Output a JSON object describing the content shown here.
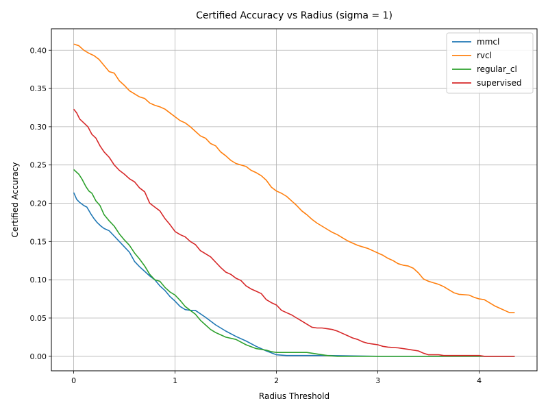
{
  "chart_data": {
    "type": "line",
    "title": "Certified Accuracy vs Radius (sigma = 1)",
    "xlabel": "Radius Threshold",
    "ylabel": "Certified Accuracy",
    "xlim": [
      -0.22,
      4.57
    ],
    "ylim": [
      -0.019,
      0.428
    ],
    "x_ticks": [
      0,
      1,
      2,
      3,
      4
    ],
    "x_tick_labels": [
      "0",
      "1",
      "2",
      "3",
      "4"
    ],
    "y_ticks": [
      0.0,
      0.05,
      0.1,
      0.15,
      0.2,
      0.25,
      0.3,
      0.35,
      0.4
    ],
    "y_tick_labels": [
      "0.00",
      "0.05",
      "0.10",
      "0.15",
      "0.20",
      "0.25",
      "0.30",
      "0.35",
      "0.40"
    ],
    "grid": true,
    "legend_position": "top-right",
    "series": [
      {
        "name": "mmcl",
        "color": "#1f77b4",
        "points": [
          [
            0,
            0.214
          ],
          [
            0.03,
            0.205
          ],
          [
            0.06,
            0.201
          ],
          [
            0.1,
            0.197
          ],
          [
            0.13,
            0.195
          ],
          [
            0.17,
            0.186
          ],
          [
            0.2,
            0.18
          ],
          [
            0.23,
            0.175
          ],
          [
            0.27,
            0.17
          ],
          [
            0.3,
            0.167
          ],
          [
            0.35,
            0.164
          ],
          [
            0.4,
            0.157
          ],
          [
            0.45,
            0.15
          ],
          [
            0.5,
            0.143
          ],
          [
            0.55,
            0.136
          ],
          [
            0.6,
            0.124
          ],
          [
            0.65,
            0.117
          ],
          [
            0.7,
            0.111
          ],
          [
            0.75,
            0.105
          ],
          [
            0.8,
            0.1
          ],
          [
            0.85,
            0.092
          ],
          [
            0.9,
            0.086
          ],
          [
            0.95,
            0.078
          ],
          [
            1.0,
            0.072
          ],
          [
            1.05,
            0.065
          ],
          [
            1.1,
            0.061
          ],
          [
            1.15,
            0.06
          ],
          [
            1.2,
            0.06
          ],
          [
            1.3,
            0.051
          ],
          [
            1.4,
            0.041
          ],
          [
            1.5,
            0.033
          ],
          [
            1.6,
            0.026
          ],
          [
            1.7,
            0.02
          ],
          [
            1.8,
            0.013
          ],
          [
            1.9,
            0.007
          ],
          [
            2.0,
            0.002
          ],
          [
            2.1,
            0.001
          ],
          [
            2.5,
            0.001
          ],
          [
            3.0,
            0.0
          ],
          [
            3.5,
            0.0
          ],
          [
            4.0,
            0.0
          ],
          [
            4.35,
            0.0
          ]
        ]
      },
      {
        "name": "rvcl",
        "color": "#ff7f0e",
        "points": [
          [
            0,
            0.408
          ],
          [
            0.05,
            0.406
          ],
          [
            0.1,
            0.4
          ],
          [
            0.15,
            0.396
          ],
          [
            0.2,
            0.393
          ],
          [
            0.25,
            0.388
          ],
          [
            0.3,
            0.38
          ],
          [
            0.35,
            0.372
          ],
          [
            0.4,
            0.37
          ],
          [
            0.45,
            0.36
          ],
          [
            0.5,
            0.354
          ],
          [
            0.55,
            0.347
          ],
          [
            0.6,
            0.343
          ],
          [
            0.65,
            0.339
          ],
          [
            0.7,
            0.337
          ],
          [
            0.75,
            0.331
          ],
          [
            0.8,
            0.328
          ],
          [
            0.85,
            0.326
          ],
          [
            0.9,
            0.323
          ],
          [
            0.95,
            0.318
          ],
          [
            1.0,
            0.313
          ],
          [
            1.05,
            0.308
          ],
          [
            1.1,
            0.305
          ],
          [
            1.15,
            0.3
          ],
          [
            1.2,
            0.294
          ],
          [
            1.25,
            0.288
          ],
          [
            1.3,
            0.285
          ],
          [
            1.35,
            0.278
          ],
          [
            1.4,
            0.275
          ],
          [
            1.45,
            0.267
          ],
          [
            1.5,
            0.262
          ],
          [
            1.55,
            0.256
          ],
          [
            1.6,
            0.252
          ],
          [
            1.65,
            0.25
          ],
          [
            1.7,
            0.248
          ],
          [
            1.75,
            0.243
          ],
          [
            1.8,
            0.24
          ],
          [
            1.85,
            0.236
          ],
          [
            1.9,
            0.23
          ],
          [
            1.95,
            0.221
          ],
          [
            2.0,
            0.216
          ],
          [
            2.05,
            0.213
          ],
          [
            2.1,
            0.209
          ],
          [
            2.15,
            0.203
          ],
          [
            2.2,
            0.197
          ],
          [
            2.25,
            0.19
          ],
          [
            2.3,
            0.185
          ],
          [
            2.35,
            0.179
          ],
          [
            2.4,
            0.174
          ],
          [
            2.45,
            0.17
          ],
          [
            2.5,
            0.166
          ],
          [
            2.55,
            0.162
          ],
          [
            2.6,
            0.159
          ],
          [
            2.65,
            0.155
          ],
          [
            2.7,
            0.151
          ],
          [
            2.75,
            0.148
          ],
          [
            2.8,
            0.145
          ],
          [
            2.85,
            0.143
          ],
          [
            2.9,
            0.141
          ],
          [
            2.95,
            0.138
          ],
          [
            3.0,
            0.135
          ],
          [
            3.05,
            0.132
          ],
          [
            3.1,
            0.128
          ],
          [
            3.15,
            0.125
          ],
          [
            3.2,
            0.121
          ],
          [
            3.25,
            0.119
          ],
          [
            3.3,
            0.118
          ],
          [
            3.35,
            0.115
          ],
          [
            3.4,
            0.109
          ],
          [
            3.45,
            0.101
          ],
          [
            3.5,
            0.098
          ],
          [
            3.55,
            0.096
          ],
          [
            3.6,
            0.094
          ],
          [
            3.65,
            0.091
          ],
          [
            3.7,
            0.087
          ],
          [
            3.75,
            0.083
          ],
          [
            3.8,
            0.081
          ],
          [
            3.9,
            0.08
          ],
          [
            3.95,
            0.077
          ],
          [
            4.0,
            0.075
          ],
          [
            4.05,
            0.074
          ],
          [
            4.1,
            0.07
          ],
          [
            4.15,
            0.066
          ],
          [
            4.2,
            0.063
          ],
          [
            4.25,
            0.06
          ],
          [
            4.3,
            0.057
          ],
          [
            4.35,
            0.057
          ]
        ]
      },
      {
        "name": "regular_cl",
        "color": "#2ca02c",
        "points": [
          [
            0,
            0.244
          ],
          [
            0.05,
            0.238
          ],
          [
            0.08,
            0.232
          ],
          [
            0.12,
            0.222
          ],
          [
            0.15,
            0.216
          ],
          [
            0.18,
            0.213
          ],
          [
            0.22,
            0.203
          ],
          [
            0.26,
            0.197
          ],
          [
            0.3,
            0.185
          ],
          [
            0.35,
            0.177
          ],
          [
            0.4,
            0.17
          ],
          [
            0.45,
            0.16
          ],
          [
            0.5,
            0.152
          ],
          [
            0.55,
            0.145
          ],
          [
            0.6,
            0.135
          ],
          [
            0.65,
            0.127
          ],
          [
            0.7,
            0.118
          ],
          [
            0.75,
            0.107
          ],
          [
            0.8,
            0.1
          ],
          [
            0.85,
            0.098
          ],
          [
            0.9,
            0.09
          ],
          [
            0.95,
            0.084
          ],
          [
            1.0,
            0.08
          ],
          [
            1.05,
            0.073
          ],
          [
            1.1,
            0.065
          ],
          [
            1.15,
            0.06
          ],
          [
            1.2,
            0.055
          ],
          [
            1.25,
            0.047
          ],
          [
            1.3,
            0.041
          ],
          [
            1.35,
            0.035
          ],
          [
            1.4,
            0.031
          ],
          [
            1.45,
            0.028
          ],
          [
            1.5,
            0.025
          ],
          [
            1.6,
            0.022
          ],
          [
            1.7,
            0.015
          ],
          [
            1.8,
            0.01
          ],
          [
            1.9,
            0.008
          ],
          [
            1.95,
            0.006
          ],
          [
            2.0,
            0.005
          ],
          [
            2.3,
            0.005
          ],
          [
            2.4,
            0.003
          ],
          [
            2.5,
            0.001
          ],
          [
            2.6,
            0.0
          ],
          [
            3.0,
            0.0
          ],
          [
            3.5,
            0.0
          ],
          [
            4.0,
            0.0
          ],
          [
            4.35,
            0.0
          ]
        ]
      },
      {
        "name": "supervised",
        "color": "#d62728",
        "points": [
          [
            0,
            0.323
          ],
          [
            0.03,
            0.318
          ],
          [
            0.06,
            0.31
          ],
          [
            0.1,
            0.305
          ],
          [
            0.14,
            0.3
          ],
          [
            0.18,
            0.29
          ],
          [
            0.22,
            0.285
          ],
          [
            0.26,
            0.275
          ],
          [
            0.3,
            0.267
          ],
          [
            0.35,
            0.26
          ],
          [
            0.4,
            0.25
          ],
          [
            0.45,
            0.243
          ],
          [
            0.5,
            0.238
          ],
          [
            0.55,
            0.232
          ],
          [
            0.6,
            0.228
          ],
          [
            0.65,
            0.22
          ],
          [
            0.7,
            0.215
          ],
          [
            0.75,
            0.2
          ],
          [
            0.8,
            0.195
          ],
          [
            0.85,
            0.19
          ],
          [
            0.9,
            0.18
          ],
          [
            0.95,
            0.172
          ],
          [
            1.0,
            0.163
          ],
          [
            1.05,
            0.159
          ],
          [
            1.1,
            0.156
          ],
          [
            1.15,
            0.15
          ],
          [
            1.2,
            0.146
          ],
          [
            1.25,
            0.138
          ],
          [
            1.3,
            0.134
          ],
          [
            1.35,
            0.13
          ],
          [
            1.4,
            0.123
          ],
          [
            1.45,
            0.116
          ],
          [
            1.5,
            0.11
          ],
          [
            1.55,
            0.107
          ],
          [
            1.6,
            0.102
          ],
          [
            1.65,
            0.099
          ],
          [
            1.7,
            0.092
          ],
          [
            1.75,
            0.088
          ],
          [
            1.8,
            0.085
          ],
          [
            1.85,
            0.082
          ],
          [
            1.9,
            0.074
          ],
          [
            1.95,
            0.07
          ],
          [
            2.0,
            0.067
          ],
          [
            2.05,
            0.06
          ],
          [
            2.1,
            0.057
          ],
          [
            2.15,
            0.054
          ],
          [
            2.2,
            0.05
          ],
          [
            2.25,
            0.046
          ],
          [
            2.3,
            0.042
          ],
          [
            2.35,
            0.038
          ],
          [
            2.4,
            0.037
          ],
          [
            2.45,
            0.037
          ],
          [
            2.5,
            0.036
          ],
          [
            2.55,
            0.035
          ],
          [
            2.6,
            0.033
          ],
          [
            2.65,
            0.03
          ],
          [
            2.7,
            0.027
          ],
          [
            2.75,
            0.024
          ],
          [
            2.8,
            0.022
          ],
          [
            2.85,
            0.019
          ],
          [
            2.9,
            0.017
          ],
          [
            2.95,
            0.016
          ],
          [
            3.0,
            0.015
          ],
          [
            3.05,
            0.013
          ],
          [
            3.1,
            0.012
          ],
          [
            3.2,
            0.011
          ],
          [
            3.3,
            0.009
          ],
          [
            3.4,
            0.007
          ],
          [
            3.45,
            0.004
          ],
          [
            3.5,
            0.002
          ],
          [
            3.6,
            0.002
          ],
          [
            3.65,
            0.001
          ],
          [
            4.0,
            0.001
          ],
          [
            4.05,
            0.0
          ],
          [
            4.35,
            0.0
          ]
        ]
      }
    ]
  }
}
